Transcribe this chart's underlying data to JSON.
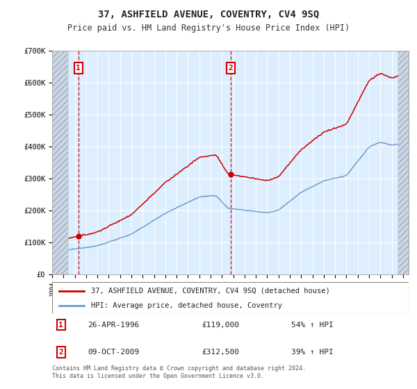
{
  "title": "37, ASHFIELD AVENUE, COVENTRY, CV4 9SQ",
  "subtitle": "Price paid vs. HM Land Registry's House Price Index (HPI)",
  "ylim": [
    0,
    700000
  ],
  "yticks": [
    0,
    100000,
    200000,
    300000,
    400000,
    500000,
    600000,
    700000
  ],
  "ytick_labels": [
    "£0",
    "£100K",
    "£200K",
    "£300K",
    "£400K",
    "£500K",
    "£600K",
    "£700K"
  ],
  "xlim_start": 1994.0,
  "xlim_end": 2025.5,
  "hatch_left_end": 1995.42,
  "hatch_right_start": 2024.58,
  "sale1_date": 1996.32,
  "sale1_price": 119000,
  "sale2_date": 2009.77,
  "sale2_price": 312500,
  "legend1": "37, ASHFIELD AVENUE, COVENTRY, CV4 9SQ (detached house)",
  "legend2": "HPI: Average price, detached house, Coventry",
  "note1_text": "26-APR-1996",
  "note1_price": "£119,000",
  "note1_hpi": "54% ↑ HPI",
  "note2_text": "09-OCT-2009",
  "note2_price": "£312,500",
  "note2_hpi": "39% ↑ HPI",
  "footer": "Contains HM Land Registry data © Crown copyright and database right 2024.\nThis data is licensed under the Open Government Licence v3.0.",
  "plot_bg": "#ddeeff",
  "hatch_bg": "#c8d8ea",
  "red_line_color": "#cc0000",
  "blue_line_color": "#6699cc",
  "grid_color": "#ffffff",
  "title_fontsize": 10,
  "subtitle_fontsize": 8.5
}
